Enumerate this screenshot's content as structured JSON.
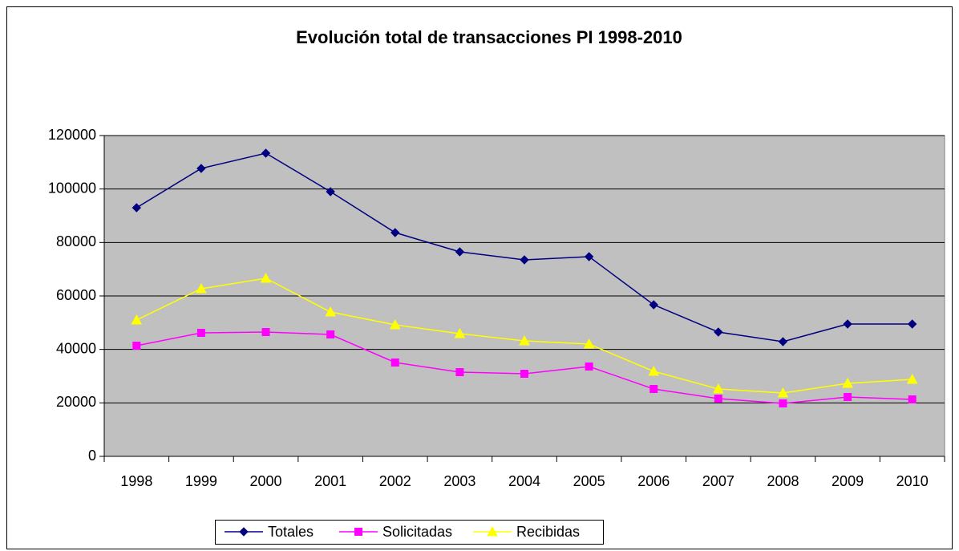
{
  "chart_data": {
    "type": "line",
    "title": "Evolución total de transacciones PI 1998-2010",
    "categories": [
      "1998",
      "1999",
      "2000",
      "2001",
      "2002",
      "2003",
      "2004",
      "2005",
      "2006",
      "2007",
      "2008",
      "2009",
      "2010"
    ],
    "series": [
      {
        "name": "Totales",
        "color": "#000080",
        "marker": "diamond",
        "values": [
          93000,
          107700,
          113400,
          99000,
          83700,
          76500,
          73500,
          74700,
          56700,
          46500,
          42900,
          49500,
          49500
        ]
      },
      {
        "name": "Solicitadas",
        "color": "#ff00ff",
        "marker": "square",
        "values": [
          41400,
          46200,
          46500,
          45600,
          35100,
          31500,
          30900,
          33600,
          25200,
          21600,
          19800,
          22200,
          21300
        ]
      },
      {
        "name": "Recibidas",
        "color": "#ffff00",
        "marker": "triangle",
        "values": [
          51000,
          62700,
          66600,
          54000,
          49200,
          45900,
          43200,
          42000,
          31800,
          25200,
          23700,
          27300,
          28800
        ]
      }
    ],
    "ylim": [
      0,
      120000
    ],
    "yticks": [
      0,
      20000,
      40000,
      60000,
      80000,
      100000,
      120000
    ],
    "grid": true,
    "plot_background": "#c0c0c0",
    "legend": "bottom"
  }
}
